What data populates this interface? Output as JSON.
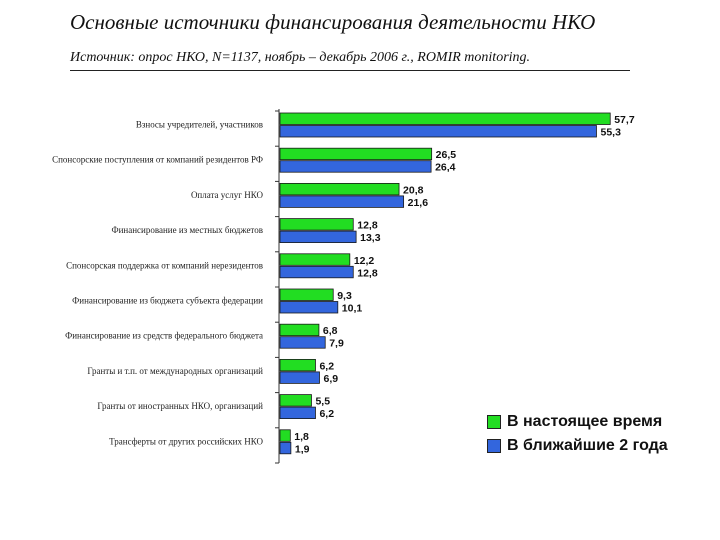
{
  "title": "Основные источники финансирования деятельности НКО",
  "subtitle": "Источник: опрос НКО, N=1137, ноябрь – декабрь 2006 г., ROMIR monitoring.",
  "colors": {
    "current": "#22dd22",
    "future": "#3366dd"
  },
  "chart_data": {
    "type": "bar",
    "orientation": "horizontal",
    "categories": [
      "Взносы учредителей, участников",
      "Спонсорские поступления от компаний резидентов РФ",
      "Оплата услуг НКО",
      "Финансирование из местных бюджетов",
      "Спонсорская поддержка от компаний нерезидентов",
      "Финансирование из бюджета субъекта федерации",
      "Финансирование из средств федерального бюджета",
      "Гранты и т.п. от международных организаций",
      "Гранты от иностранных НКО, организаций",
      "Трансферты от других российских НКО"
    ],
    "series": [
      {
        "name": "В настоящее время",
        "values": [
          57.7,
          26.5,
          20.8,
          12.8,
          12.2,
          9.3,
          6.8,
          6.2,
          5.5,
          1.8
        ],
        "labels": [
          "57,7",
          "26,5",
          "20,8",
          "12,8",
          "12,2",
          "9,3",
          "6,8",
          "6,2",
          "5,5",
          "1,8"
        ]
      },
      {
        "name": "В ближайшие 2 года",
        "values": [
          55.3,
          26.4,
          21.6,
          13.3,
          12.8,
          10.1,
          7.9,
          6.9,
          6.2,
          1.9
        ],
        "labels": [
          "55,3",
          "26,4",
          "21,6",
          "13,3",
          "12,8",
          "10,1",
          "7,9",
          "6,9",
          "6,2",
          "1,9"
        ]
      }
    ],
    "xlim": [
      0,
      65
    ],
    "grid": false,
    "legend_position": "bottom-right"
  }
}
